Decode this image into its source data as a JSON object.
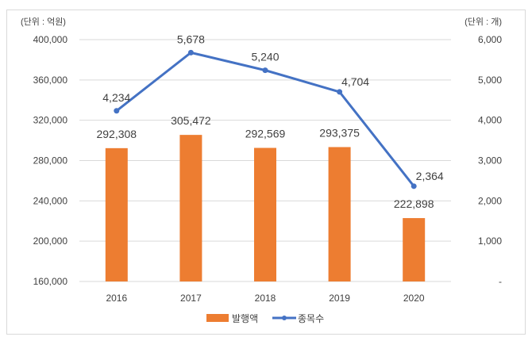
{
  "chart_data": {
    "type": "bar+line",
    "categories": [
      "2016",
      "2017",
      "2018",
      "2019",
      "2020"
    ],
    "series": [
      {
        "name": "발행액",
        "type": "bar",
        "axis": "left",
        "color": "#ED7D31",
        "values": [
          292308,
          305472,
          292569,
          293375,
          222898
        ],
        "labels": [
          "292,308",
          "305,472",
          "292,569",
          "293,375",
          "222,898"
        ]
      },
      {
        "name": "종목수",
        "type": "line",
        "axis": "right",
        "color": "#4472C4",
        "values": [
          4234,
          5678,
          5240,
          4704,
          2364
        ],
        "labels": [
          "4,234",
          "5,678",
          "5,240",
          "4,704",
          "2,364"
        ]
      }
    ],
    "left_axis": {
      "unit_label": "(단위 : 억원)",
      "ylim": [
        160000,
        400000
      ],
      "ticks": [
        "160,000",
        "200,000",
        "240,000",
        "280,000",
        "320,000",
        "360,000",
        "400,000"
      ]
    },
    "right_axis": {
      "unit_label": "(단위 : 개)",
      "ylim": [
        0,
        6000
      ],
      "ticks": [
        "-",
        "1,000",
        "2,000",
        "3,000",
        "4,000",
        "5,000",
        "6,000"
      ]
    },
    "grid": true,
    "legend": "bottom"
  }
}
